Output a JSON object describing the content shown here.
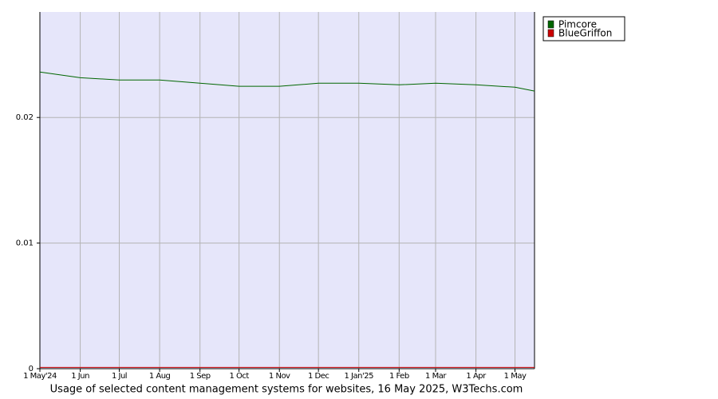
{
  "chart_data": {
    "type": "line",
    "caption": "Usage of selected content management systems for websites, 16 May 2025, W3Techs.com",
    "x": [
      "2024-05-01",
      "2024-06-01",
      "2024-07-01",
      "2024-08-01",
      "2024-09-01",
      "2024-10-01",
      "2024-11-01",
      "2024-12-01",
      "2025-01-01",
      "2025-02-01",
      "2025-03-01",
      "2025-04-01",
      "2025-05-01",
      "2025-05-16"
    ],
    "xlim": [
      "2024-05-01",
      "2025-05-16"
    ],
    "xticks": [
      {
        "value": "2024-05-01",
        "label": "1 May'24"
      },
      {
        "value": "2024-06-01",
        "label": "1 Jun"
      },
      {
        "value": "2024-07-01",
        "label": "1 Jul"
      },
      {
        "value": "2024-08-01",
        "label": "1 Aug"
      },
      {
        "value": "2024-09-01",
        "label": "1 Sep"
      },
      {
        "value": "2024-10-01",
        "label": "1 Oct"
      },
      {
        "value": "2024-11-01",
        "label": "1 Nov"
      },
      {
        "value": "2024-12-01",
        "label": "1 Dec"
      },
      {
        "value": "2025-01-01",
        "label": "1 Jan'25"
      },
      {
        "value": "2025-02-01",
        "label": "1 Feb"
      },
      {
        "value": "2025-03-01",
        "label": "1 Mar"
      },
      {
        "value": "2025-04-01",
        "label": "1 Apr"
      },
      {
        "value": "2025-05-01",
        "label": "1 May"
      }
    ],
    "ylim": [
      0,
      0.0284
    ],
    "yticks": [
      0,
      0.01,
      0.02
    ],
    "grid": true,
    "legend": "outside-top-right",
    "series": [
      {
        "name": "Pimcore",
        "color": "#006600",
        "values": [
          0.02362,
          0.02317,
          0.02298,
          0.02298,
          0.02273,
          0.02248,
          0.02248,
          0.02273,
          0.02273,
          0.0226,
          0.02273,
          0.0226,
          0.02241,
          0.0221
        ]
      },
      {
        "name": "BlueGriffon",
        "color": "#cc0000",
        "values": [
          0.0001,
          0.0001,
          0.0001,
          0.0001,
          0.0001,
          0.0001,
          0.0001,
          0.0001,
          0.0001,
          0.0001,
          0.0001,
          0.0001,
          0.0001,
          0.0001
        ]
      }
    ]
  }
}
